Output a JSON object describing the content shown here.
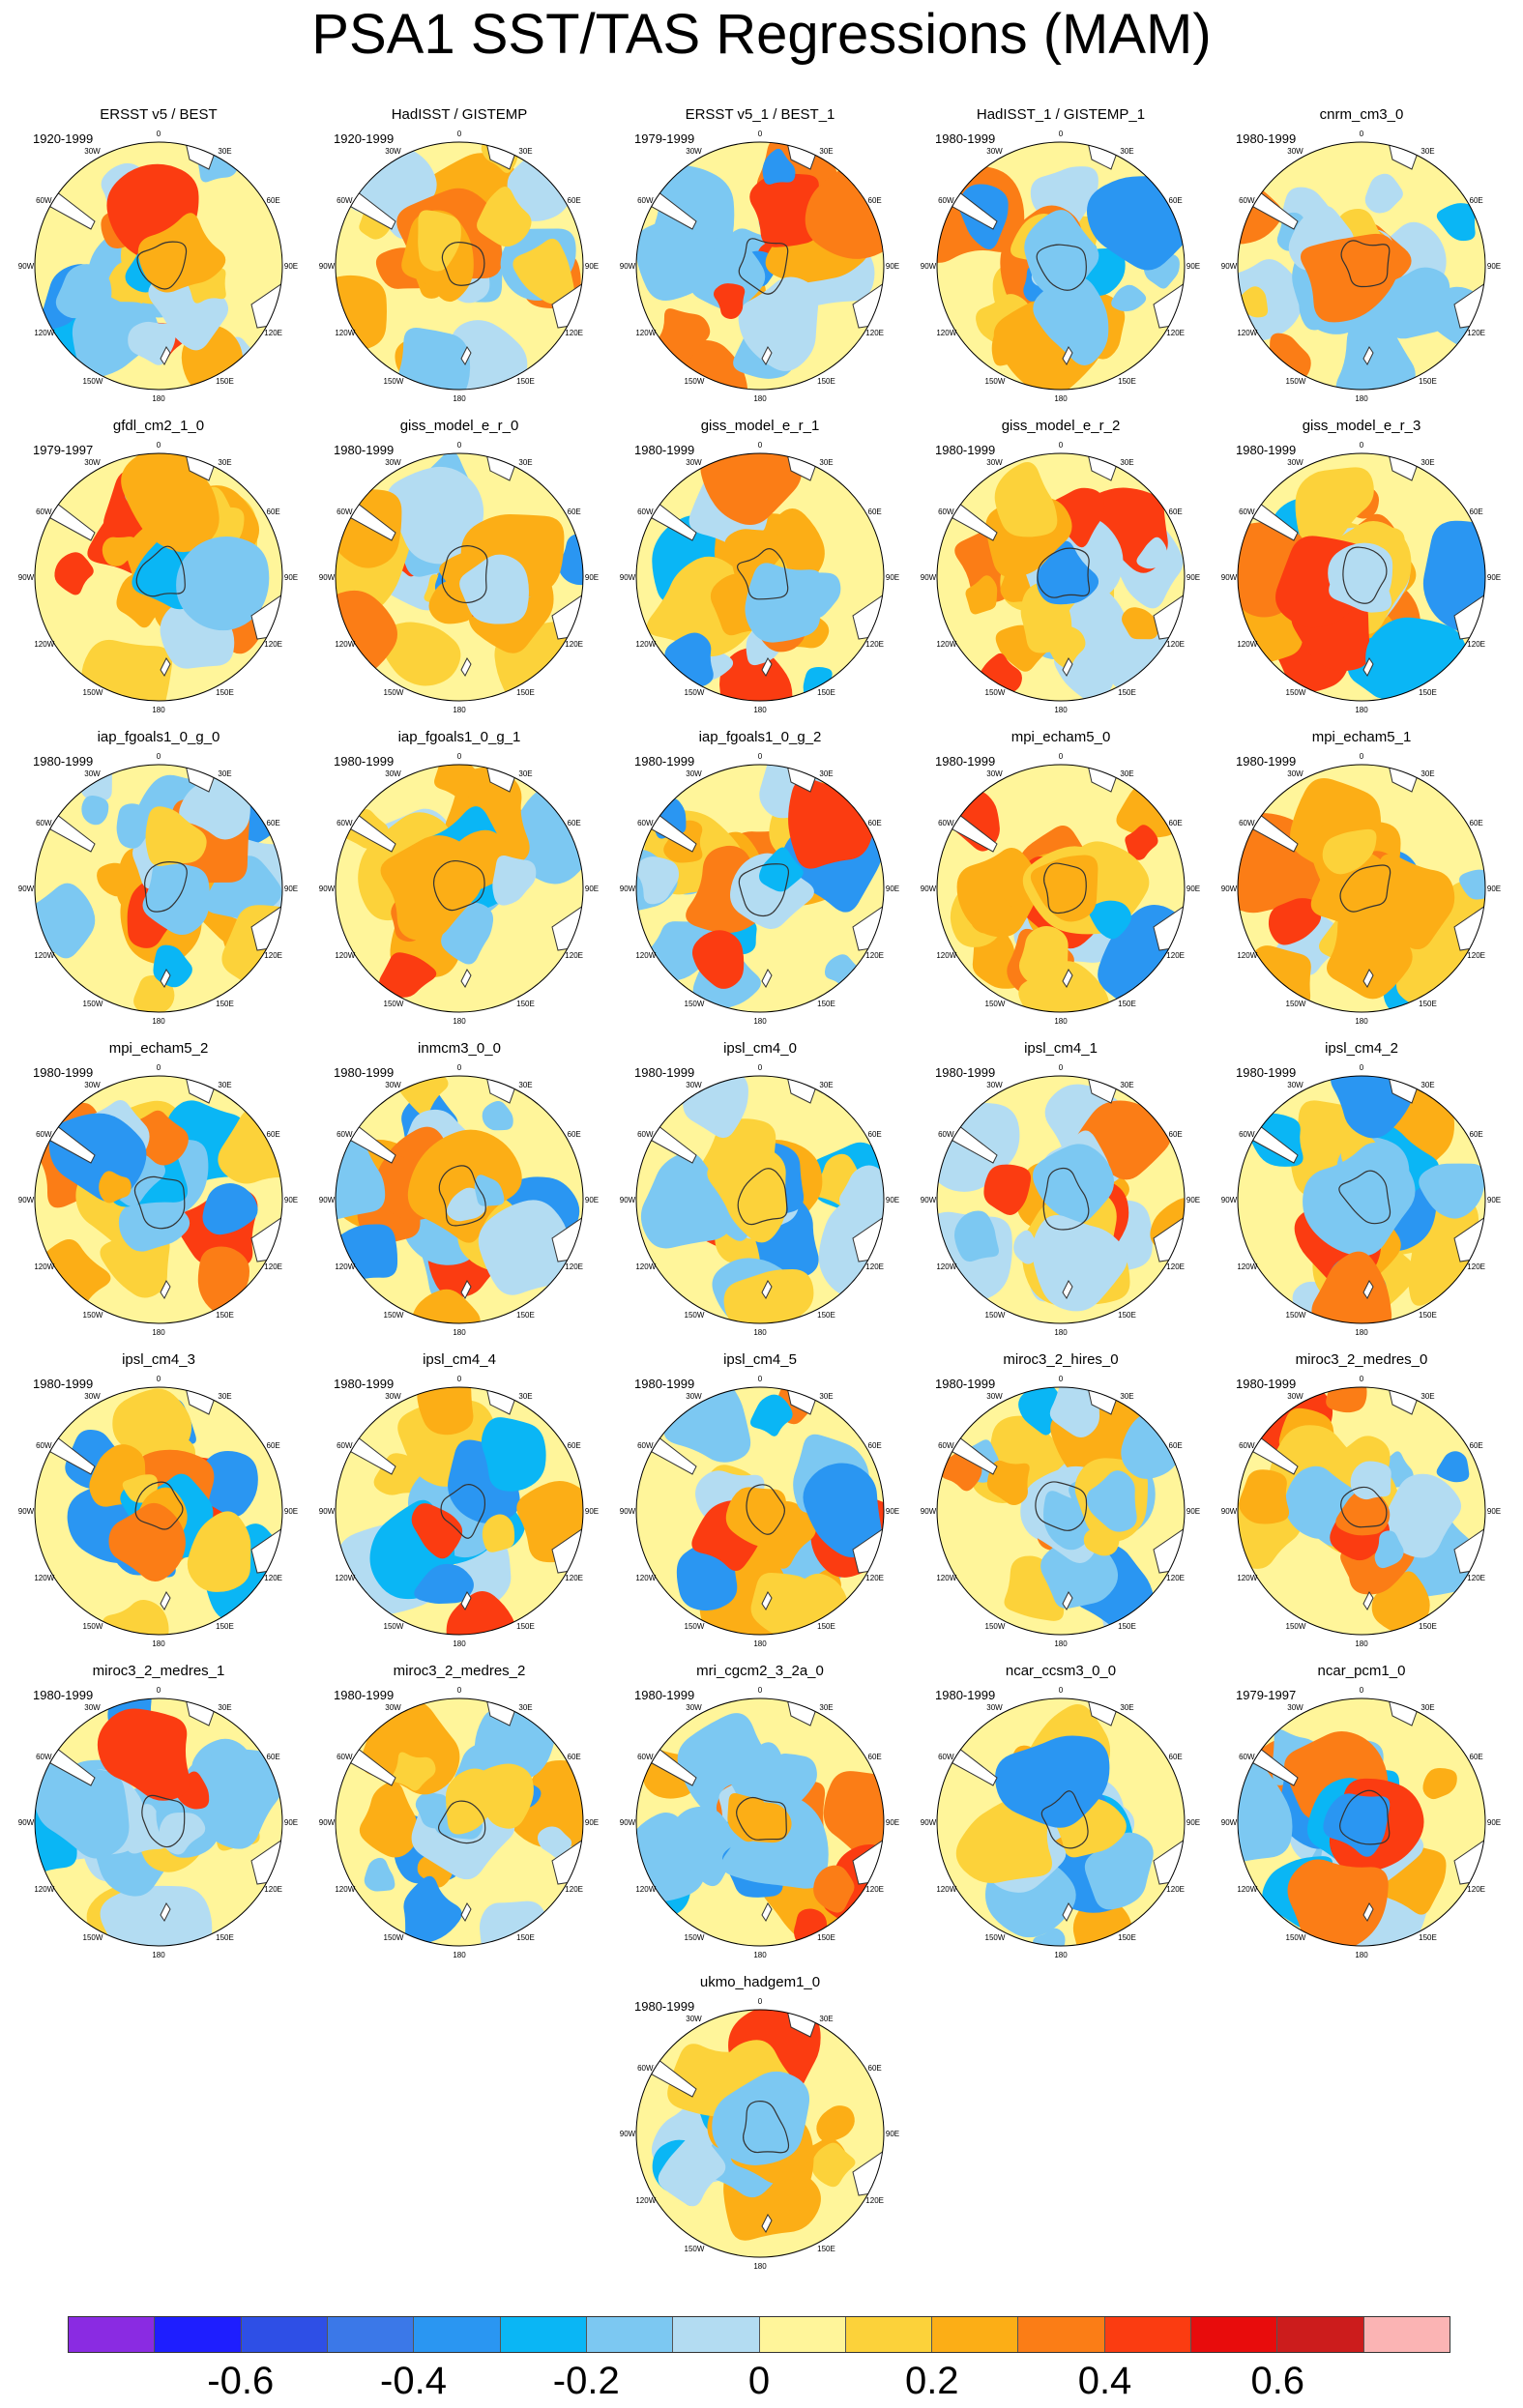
{
  "title": "PSA1 SST/TAS Regressions (MAM)",
  "longitude_labels": {
    "top": "0",
    "bottom": "180",
    "e30": "30E",
    "e60": "60E",
    "e90": "90E",
    "e120": "120E",
    "e150": "150E",
    "w30": "30W",
    "w60": "60W",
    "w90": "90W",
    "w120": "120W",
    "w150": "150W"
  },
  "panels": [
    {
      "title": "ERSST v5 / BEST",
      "period": "1920-1999"
    },
    {
      "title": "HadISST / GISTEMP",
      "period": "1920-1999"
    },
    {
      "title": "ERSST v5_1 / BEST_1",
      "period": "1979-1999"
    },
    {
      "title": "HadISST_1 / GISTEMP_1",
      "period": "1980-1999"
    },
    {
      "title": "cnrm_cm3_0",
      "period": "1980-1999"
    },
    {
      "title": "gfdl_cm2_1_0",
      "period": "1979-1997"
    },
    {
      "title": "giss_model_e_r_0",
      "period": "1980-1999"
    },
    {
      "title": "giss_model_e_r_1",
      "period": "1980-1999"
    },
    {
      "title": "giss_model_e_r_2",
      "period": "1980-1999"
    },
    {
      "title": "giss_model_e_r_3",
      "period": "1980-1999"
    },
    {
      "title": "iap_fgoals1_0_g_0",
      "period": "1980-1999"
    },
    {
      "title": "iap_fgoals1_0_g_1",
      "period": "1980-1999"
    },
    {
      "title": "iap_fgoals1_0_g_2",
      "period": "1980-1999"
    },
    {
      "title": "mpi_echam5_0",
      "period": "1980-1999"
    },
    {
      "title": "mpi_echam5_1",
      "period": "1980-1999"
    },
    {
      "title": "mpi_echam5_2",
      "period": "1980-1999"
    },
    {
      "title": "inmcm3_0_0",
      "period": "1980-1999"
    },
    {
      "title": "ipsl_cm4_0",
      "period": "1980-1999"
    },
    {
      "title": "ipsl_cm4_1",
      "period": "1980-1999"
    },
    {
      "title": "ipsl_cm4_2",
      "period": "1980-1999"
    },
    {
      "title": "ipsl_cm4_3",
      "period": "1980-1999"
    },
    {
      "title": "ipsl_cm4_4",
      "period": "1980-1999"
    },
    {
      "title": "ipsl_cm4_5",
      "period": "1980-1999"
    },
    {
      "title": "miroc3_2_hires_0",
      "period": "1980-1999"
    },
    {
      "title": "miroc3_2_medres_0",
      "period": "1980-1999"
    },
    {
      "title": "miroc3_2_medres_1",
      "period": "1980-1999"
    },
    {
      "title": "miroc3_2_medres_2",
      "period": "1980-1999"
    },
    {
      "title": "mri_cgcm2_3_2a_0",
      "period": "1980-1999"
    },
    {
      "title": "ncar_ccsm3_0_0",
      "period": "1980-1999"
    },
    {
      "title": "ncar_pcm1_0",
      "period": "1979-1997"
    },
    {
      "title": "ukmo_hadgem1_0",
      "period": "1980-1999"
    }
  ],
  "colorbar": {
    "colors": [
      "#8a2be2",
      "#1e1eff",
      "#2e4fe6",
      "#3b78e8",
      "#2a96f2",
      "#0ab6f5",
      "#7cc8f2",
      "#b3dcf2",
      "#fff59a",
      "#fcd23a",
      "#fcae16",
      "#fb7d16",
      "#fb3c11",
      "#e80c0c",
      "#cc1c1c",
      "#fbb4b4"
    ],
    "ticks": [
      "-0.6",
      "-0.4",
      "-0.2",
      "0",
      "0.2",
      "0.4",
      "0.6"
    ]
  }
}
